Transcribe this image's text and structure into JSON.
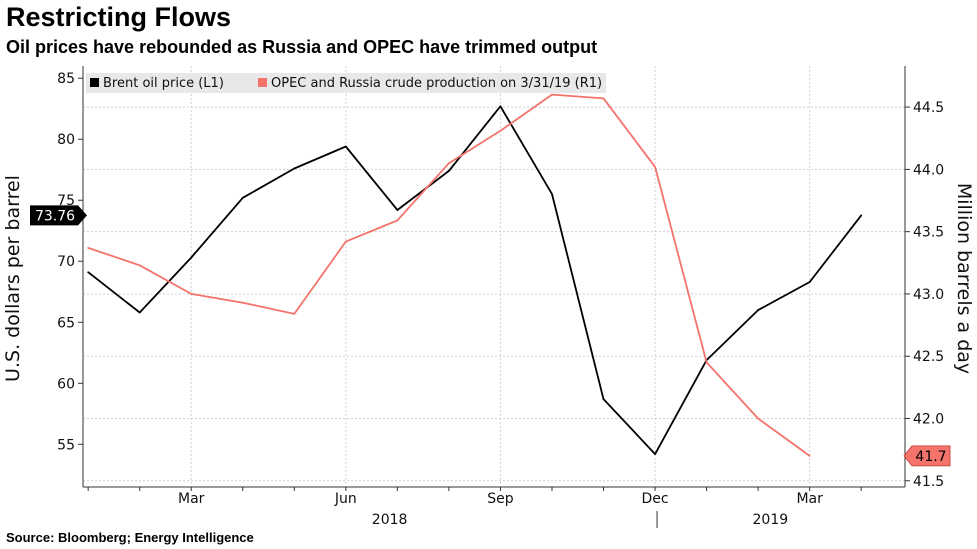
{
  "title": "Restricting Flows",
  "subtitle": "Oil prices have rebounded as Russia and OPEC have trimmed output",
  "source": "Source: Bloomberg; Energy Intelligence",
  "chart_data": {
    "type": "line",
    "y_left_label": "U.S. dollars per barrel",
    "y_right_label": "Million barrels a day",
    "y_left_ticks": [
      55,
      60,
      65,
      70,
      75,
      80,
      85
    ],
    "y_right_ticks": [
      41.5,
      42.0,
      42.5,
      43.0,
      43.5,
      44.0,
      44.5
    ],
    "y_right_tick_labels": [
      "41.5",
      "42.0",
      "42.5",
      "43.0",
      "43.5",
      "44.0",
      "44.5"
    ],
    "y_left_range": [
      51.5,
      86.0
    ],
    "y_right_range": [
      41.45,
      44.83
    ],
    "x_ticks": [
      {
        "label": "Mar",
        "month": 2
      },
      {
        "label": "Jun",
        "month": 5
      },
      {
        "label": "Sep",
        "month": 8
      },
      {
        "label": "Dec",
        "month": 11
      },
      {
        "label": "Mar",
        "month": 14
      }
    ],
    "years": [
      "2018",
      "2019"
    ],
    "series": [
      {
        "name": "Brent oil price (L1)",
        "axis": "left",
        "color": "#000000",
        "points": [
          {
            "month": 0,
            "value": 69.1
          },
          {
            "month": 1,
            "value": 65.8
          },
          {
            "month": 2,
            "value": 70.3
          },
          {
            "month": 3,
            "value": 75.2
          },
          {
            "month": 4,
            "value": 77.6
          },
          {
            "month": 5,
            "value": 79.4
          },
          {
            "month": 6,
            "value": 74.2
          },
          {
            "month": 7,
            "value": 77.4
          },
          {
            "month": 8,
            "value": 82.7
          },
          {
            "month": 9,
            "value": 75.5
          },
          {
            "month": 10,
            "value": 58.7
          },
          {
            "month": 11,
            "value": 54.2
          },
          {
            "month": 12,
            "value": 61.9
          },
          {
            "month": 13,
            "value": 66.0
          },
          {
            "month": 14,
            "value": 68.3
          },
          {
            "month": 15,
            "value": 73.76
          }
        ],
        "last_value_label": "73.76"
      },
      {
        "name": "OPEC and Russia crude production on 3/31/19 (R1)",
        "axis": "right",
        "color": "#f4736b",
        "points": [
          {
            "month": 0,
            "value": 43.37
          },
          {
            "month": 1,
            "value": 43.23
          },
          {
            "month": 2,
            "value": 43.0
          },
          {
            "month": 3,
            "value": 42.93
          },
          {
            "month": 4,
            "value": 42.84
          },
          {
            "month": 5,
            "value": 43.42
          },
          {
            "month": 6,
            "value": 43.59
          },
          {
            "month": 7,
            "value": 44.05
          },
          {
            "month": 8,
            "value": 44.31
          },
          {
            "month": 9,
            "value": 44.6
          },
          {
            "month": 10,
            "value": 44.57
          },
          {
            "month": 11,
            "value": 44.02
          },
          {
            "month": 12,
            "value": 42.45
          },
          {
            "month": 13,
            "value": 42.0
          },
          {
            "month": 14,
            "value": 41.7
          }
        ],
        "last_value_label": "41.7"
      }
    ],
    "grid": true,
    "legend_position": "top-left"
  }
}
